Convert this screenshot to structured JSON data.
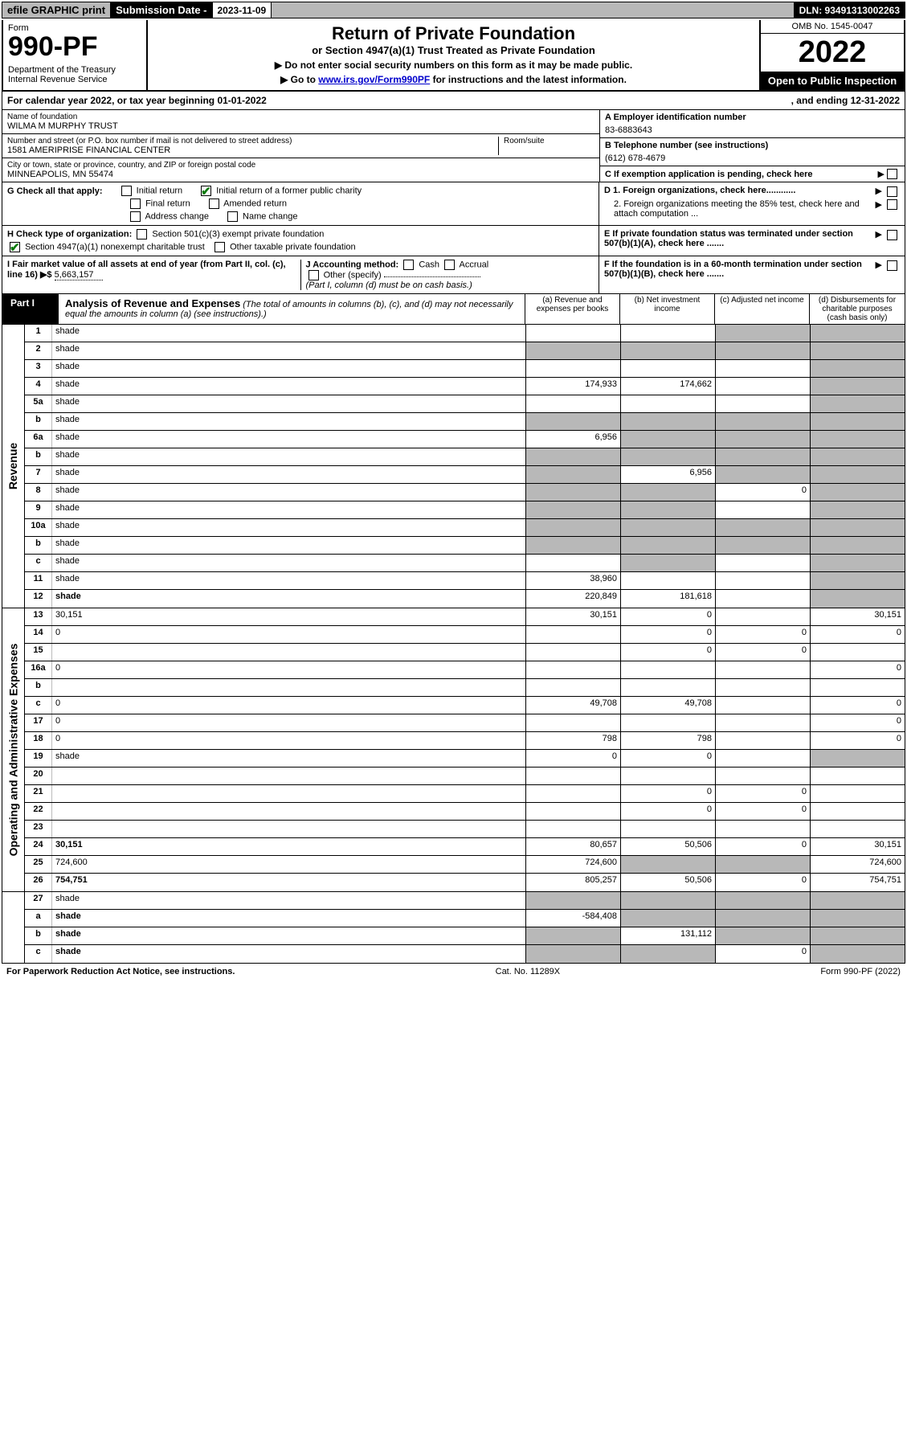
{
  "topbar": {
    "efile": "efile GRAPHIC print",
    "subdate_label": "Submission Date - ",
    "subdate_val": "2023-11-09",
    "dln": "DLN: 93491313002263"
  },
  "header": {
    "form_label": "Form",
    "form_no": "990-PF",
    "dept": "Department of the Treasury\nInternal Revenue Service",
    "title": "Return of Private Foundation",
    "subtitle": "or Section 4947(a)(1) Trust Treated as Private Foundation",
    "instr1": "▶ Do not enter social security numbers on this form as it may be made public.",
    "instr2_pre": "▶ Go to ",
    "instr2_link": "www.irs.gov/Form990PF",
    "instr2_post": " for instructions and the latest information.",
    "omb": "OMB No. 1545-0047",
    "year": "2022",
    "open": "Open to Public Inspection"
  },
  "calrow": {
    "left": "For calendar year 2022, or tax year beginning 01-01-2022",
    "right": ", and ending 12-31-2022"
  },
  "info": {
    "name_lbl": "Name of foundation",
    "name_val": "WILMA M MURPHY TRUST",
    "addr_lbl": "Number and street (or P.O. box number if mail is not delivered to street address)",
    "addr_val": "1581 AMERIPRISE FINANCIAL CENTER",
    "room_lbl": "Room/suite",
    "city_lbl": "City or town, state or province, country, and ZIP or foreign postal code",
    "city_val": "MINNEAPOLIS, MN  55474",
    "a_lbl": "A Employer identification number",
    "a_val": "83-6883643",
    "b_lbl": "B Telephone number (see instructions)",
    "b_val": "(612) 678-4679",
    "c_lbl": "C If exemption application is pending, check here",
    "d1_lbl": "D 1. Foreign organizations, check here............",
    "d2_lbl": "2. Foreign organizations meeting the 85% test, check here and attach computation ...",
    "e_lbl": "E  If private foundation status was terminated under section 507(b)(1)(A), check here .......",
    "f_lbl": "F  If the foundation is in a 60-month termination under section 507(b)(1)(B), check here ......."
  },
  "checks": {
    "g_lbl": "G Check all that apply:",
    "initial": "Initial return",
    "initial_former": "Initial return of a former public charity",
    "final": "Final return",
    "amended": "Amended return",
    "addrchange": "Address change",
    "namechange": "Name change",
    "h_lbl": "H Check type of organization:",
    "h_501c3": "Section 501(c)(3) exempt private foundation",
    "h_4947": "Section 4947(a)(1) nonexempt charitable trust",
    "h_other": "Other taxable private foundation",
    "i_lbl": "I Fair market value of all assets at end of year (from Part II, col. (c), line 16) ▶$",
    "i_val": "5,663,157",
    "j_lbl": "J Accounting method:",
    "j_cash": "Cash",
    "j_accrual": "Accrual",
    "j_other": "Other (specify)",
    "j_note": "(Part I, column (d) must be on cash basis.)"
  },
  "part1": {
    "label": "Part I",
    "title": "Analysis of Revenue and Expenses",
    "title_note": " (The total of amounts in columns (b), (c), and (d) may not necessarily equal the amounts in column (a) (see instructions).)",
    "col_a": "(a)   Revenue and expenses per books",
    "col_b": "(b)   Net investment income",
    "col_c": "(c)   Adjusted net income",
    "col_d": "(d)  Disbursements for charitable purposes (cash basis only)"
  },
  "side_rev": "Revenue",
  "side_exp": "Operating and Administrative Expenses",
  "rows_rev": [
    {
      "n": "1",
      "d": "shade",
      "a": "",
      "b": "",
      "c": "shade"
    },
    {
      "n": "2",
      "d": "shade",
      "a": "shade",
      "b": "shade",
      "c": "shade"
    },
    {
      "n": "3",
      "d": "shade",
      "a": "",
      "b": "",
      "c": ""
    },
    {
      "n": "4",
      "d": "shade",
      "a": "174,933",
      "b": "174,662",
      "c": ""
    },
    {
      "n": "5a",
      "d": "shade",
      "a": "",
      "b": "",
      "c": ""
    },
    {
      "n": "b",
      "d": "shade",
      "a": "shade",
      "b": "shade",
      "c": "shade"
    },
    {
      "n": "6a",
      "d": "shade",
      "a": "6,956",
      "b": "shade",
      "c": "shade"
    },
    {
      "n": "b",
      "d": "shade",
      "a": "shade",
      "b": "shade",
      "c": "shade"
    },
    {
      "n": "7",
      "d": "shade",
      "a": "shade",
      "b": "6,956",
      "c": "shade"
    },
    {
      "n": "8",
      "d": "shade",
      "a": "shade",
      "b": "shade",
      "c": "0"
    },
    {
      "n": "9",
      "d": "shade",
      "a": "shade",
      "b": "shade",
      "c": ""
    },
    {
      "n": "10a",
      "d": "shade",
      "a": "shade",
      "b": "shade",
      "c": "shade"
    },
    {
      "n": "b",
      "d": "shade",
      "a": "shade",
      "b": "shade",
      "c": "shade"
    },
    {
      "n": "c",
      "d": "shade",
      "a": "",
      "b": "shade",
      "c": ""
    },
    {
      "n": "11",
      "d": "shade",
      "a": "38,960",
      "b": "",
      "c": ""
    },
    {
      "n": "12",
      "d": "shade",
      "a": "220,849",
      "b": "181,618",
      "c": "",
      "bold": true
    }
  ],
  "rows_exp": [
    {
      "n": "13",
      "d": "30,151",
      "a": "30,151",
      "b": "0",
      "c": ""
    },
    {
      "n": "14",
      "d": "0",
      "a": "",
      "b": "0",
      "c": "0"
    },
    {
      "n": "15",
      "d": "",
      "a": "",
      "b": "0",
      "c": "0"
    },
    {
      "n": "16a",
      "d": "0",
      "a": "",
      "b": "",
      "c": ""
    },
    {
      "n": "b",
      "d": "",
      "a": "",
      "b": "",
      "c": ""
    },
    {
      "n": "c",
      "d": "0",
      "a": "49,708",
      "b": "49,708",
      "c": ""
    },
    {
      "n": "17",
      "d": "0",
      "a": "",
      "b": "",
      "c": ""
    },
    {
      "n": "18",
      "d": "0",
      "a": "798",
      "b": "798",
      "c": ""
    },
    {
      "n": "19",
      "d": "shade",
      "a": "0",
      "b": "0",
      "c": ""
    },
    {
      "n": "20",
      "d": "",
      "a": "",
      "b": "",
      "c": ""
    },
    {
      "n": "21",
      "d": "",
      "a": "",
      "b": "0",
      "c": "0"
    },
    {
      "n": "22",
      "d": "",
      "a": "",
      "b": "0",
      "c": "0"
    },
    {
      "n": "23",
      "d": "",
      "a": "",
      "b": "",
      "c": ""
    },
    {
      "n": "24",
      "d": "30,151",
      "a": "80,657",
      "b": "50,506",
      "c": "0",
      "bold": true
    },
    {
      "n": "25",
      "d": "724,600",
      "a": "724,600",
      "b": "shade",
      "c": "shade"
    },
    {
      "n": "26",
      "d": "754,751",
      "a": "805,257",
      "b": "50,506",
      "c": "0",
      "bold": true
    }
  ],
  "rows_final": [
    {
      "n": "27",
      "d": "shade",
      "a": "shade",
      "b": "shade",
      "c": "shade"
    },
    {
      "n": "a",
      "d": "shade",
      "a": "-584,408",
      "b": "shade",
      "c": "shade",
      "bold": true
    },
    {
      "n": "b",
      "d": "shade",
      "a": "shade",
      "b": "131,112",
      "c": "shade",
      "bold": true
    },
    {
      "n": "c",
      "d": "shade",
      "a": "shade",
      "b": "shade",
      "c": "0",
      "bold": true
    }
  ],
  "footer": {
    "left": "For Paperwork Reduction Act Notice, see instructions.",
    "center": "Cat. No. 11289X",
    "right": "Form 990-PF (2022)"
  },
  "colors": {
    "gray": "#b8b8b8",
    "link": "#0000cc",
    "check_green": "#0a7a0a"
  }
}
